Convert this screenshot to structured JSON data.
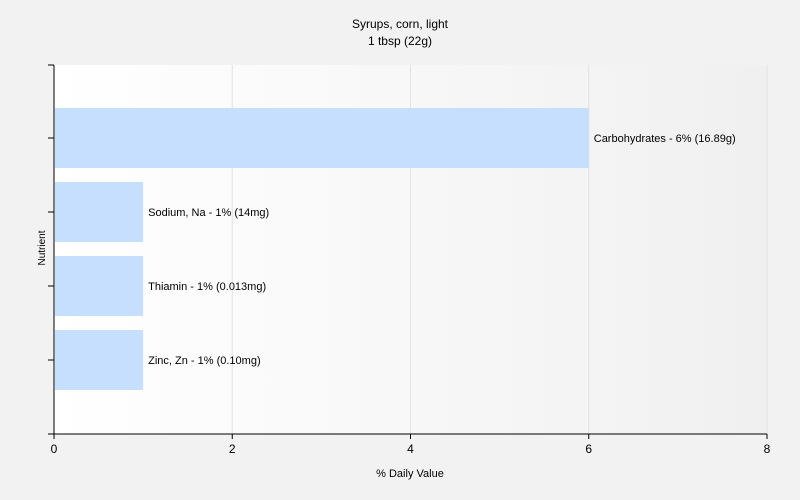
{
  "chart_data": {
    "type": "bar",
    "orientation": "horizontal",
    "title": "Syrups, corn, light",
    "subtitle": "1 tbsp (22g)",
    "xlabel": "% Daily Value",
    "ylabel": "Nutrient",
    "xlim": [
      0,
      8
    ],
    "xticks": [
      0,
      2,
      4,
      6,
      8
    ],
    "grid": true,
    "bar_color": "#c6dfff",
    "categories": [
      "Carbohydrates",
      "Sodium, Na",
      "Thiamin",
      "Zinc, Zn"
    ],
    "values": [
      6,
      1,
      1,
      1
    ],
    "labels": [
      "Carbohydrates - 6% (16.89g)",
      "Sodium, Na - 1% (14mg)",
      "Thiamin - 1% (0.013mg)",
      "Zinc, Zn - 1% (0.10mg)"
    ]
  }
}
